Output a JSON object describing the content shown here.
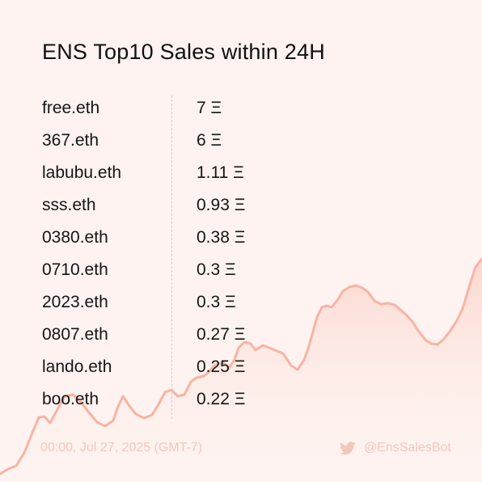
{
  "title": "ENS Top10 Sales within 24H",
  "sales": [
    {
      "name": "free.eth",
      "price": "7 Ξ"
    },
    {
      "name": "367.eth",
      "price": "6 Ξ"
    },
    {
      "name": "labubu.eth",
      "price": "1.11 Ξ"
    },
    {
      "name": "sss.eth",
      "price": "0.93 Ξ"
    },
    {
      "name": "0380.eth",
      "price": "0.38 Ξ"
    },
    {
      "name": "0710.eth",
      "price": "0.3 Ξ"
    },
    {
      "name": "2023.eth",
      "price": "0.3 Ξ"
    },
    {
      "name": "0807.eth",
      "price": "0.27 Ξ"
    },
    {
      "name": "lando.eth",
      "price": "0.25 Ξ"
    },
    {
      "name": "boo.eth",
      "price": "0.22 Ξ"
    }
  ],
  "footer": {
    "timestamp": "00:00, Jul 27, 2025 (GMT-7)",
    "handle": "@EnsSalesBot",
    "handle_icon": "twitter-bird-icon"
  },
  "colors": {
    "background": "#fef3f0",
    "line": "#f7b4a4",
    "fill": "#fbd2c8",
    "text": "#151515",
    "muted": "#f2c7bc"
  }
}
